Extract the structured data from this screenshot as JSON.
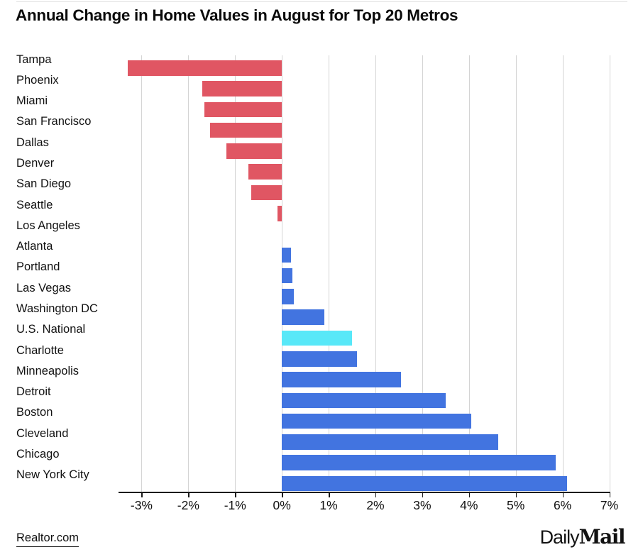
{
  "page": {
    "title": "Annual Change in Home Values in August for Top 20 Metros",
    "source_link": "Realtor.com",
    "logo": {
      "daily": "Daily",
      "mail": "Mail"
    }
  },
  "colors": {
    "negative_bar": "#E05663",
    "positive_bar": "#4274E0",
    "highlight_bar": "#58E8F8",
    "gridline": "#D4D4D4",
    "axis": "#1A1A1A",
    "text": "#111111"
  },
  "chart_data": {
    "type": "bar",
    "orientation": "horizontal",
    "title": "Annual Change in Home Values in August for Top 20 Metros",
    "unit": "%",
    "xlim": [
      -3.5,
      7
    ],
    "grid": true,
    "legend": false,
    "x_tick_values": [
      -3,
      -2,
      -1,
      0,
      1,
      2,
      3,
      4,
      5,
      6,
      7
    ],
    "x_tick_labels": [
      "-3%",
      "-2%",
      "-1%",
      "0%",
      "1%",
      "2%",
      "3%",
      "4%",
      "5%",
      "6%",
      "7%"
    ],
    "highlight_category": "U.S. National",
    "categories": [
      "Tampa",
      "Phoenix",
      "Miami",
      "San Francisco",
      "Dallas",
      "Denver",
      "San Diego",
      "Seattle",
      "Los Angeles",
      "Atlanta",
      "Portland",
      "Las Vegas",
      "Washington DC",
      "U.S. National",
      "Charlotte",
      "Minneapolis",
      "Detroit",
      "Boston",
      "Cleveland",
      "Chicago",
      "New York City"
    ],
    "values": [
      -3.3,
      -1.7,
      -1.65,
      -1.53,
      -1.18,
      -0.71,
      -0.65,
      -0.1,
      0,
      0.19,
      0.23,
      0.26,
      0.91,
      1.5,
      1.6,
      2.54,
      3.5,
      4.05,
      4.62,
      5.86,
      6.1
    ]
  }
}
